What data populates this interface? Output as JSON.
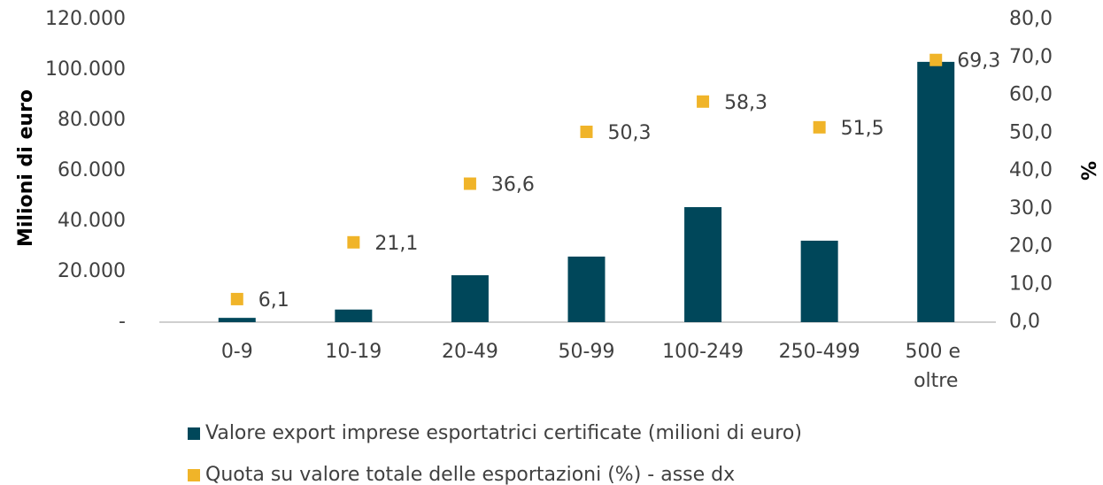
{
  "chart_data": {
    "type": "bar",
    "y_label": "Milioni di euro",
    "y2_label": "%",
    "categories": [
      "0-9",
      "10-19",
      "20-49",
      "50-99",
      "100-249",
      "250-499",
      "500 e oltre"
    ],
    "series": [
      {
        "name": "Valore export imprese esportatrici certificate (milioni di euro)",
        "color": "#00475a",
        "type": "bar",
        "values": [
          1700,
          5000,
          18600,
          26000,
          45600,
          32300,
          103200
        ]
      },
      {
        "name": "Quota su valore totale delle esportazioni (%) - asse dx",
        "color": "#f0b429",
        "type": "scatter",
        "axis": "y2",
        "values": [
          6.1,
          21.1,
          36.6,
          50.3,
          58.3,
          51.5,
          69.3
        ],
        "value_labels": [
          "6,1",
          "21,1",
          "36,6",
          "50,3",
          "58,3",
          "51,5",
          "69,3"
        ]
      }
    ],
    "ylim": [
      0,
      120000
    ],
    "yticks": [
      {
        "value": 0,
        "label": "-"
      },
      {
        "value": 20000,
        "label": "20.000"
      },
      {
        "value": 40000,
        "label": "40.000"
      },
      {
        "value": 60000,
        "label": "60.000"
      },
      {
        "value": 80000,
        "label": "80.000"
      },
      {
        "value": 100000,
        "label": "100.000"
      },
      {
        "value": 120000,
        "label": "120.000"
      }
    ],
    "y2lim": [
      0,
      80
    ],
    "y2ticks": [
      {
        "value": 0,
        "label": "0,0"
      },
      {
        "value": 10,
        "label": "10,0"
      },
      {
        "value": 20,
        "label": "20,0"
      },
      {
        "value": 30,
        "label": "30,0"
      },
      {
        "value": 40,
        "label": "40,0"
      },
      {
        "value": 50,
        "label": "50,0"
      },
      {
        "value": 60,
        "label": "60,0"
      },
      {
        "value": 70,
        "label": "70,0"
      },
      {
        "value": 80,
        "label": "80,0"
      }
    ],
    "legend": "bottom"
  }
}
